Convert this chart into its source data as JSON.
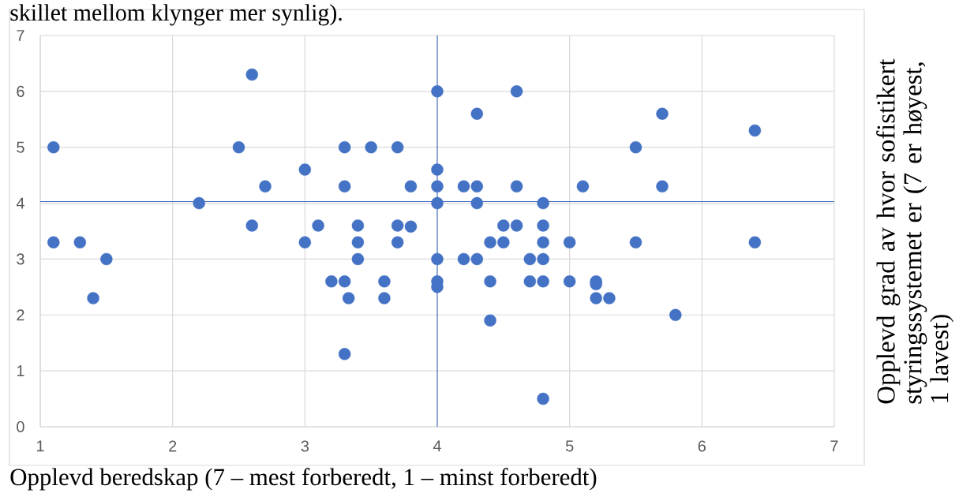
{
  "chart_data": {
    "type": "scatter",
    "annotations": [
      "skillet mellom klynger mer synlig)."
    ],
    "xlabel": "Opplevd beredskap (7 – mest forberedt, 1 – minst forberedt)",
    "ylabel": "Opplevd grad av hvor sofistikert styringssystemet er (7 er høyest, 1 lavest)",
    "color": "#4472c4",
    "grid": true,
    "xlim": [
      1,
      7
    ],
    "ylim": [
      0,
      7
    ],
    "xticks": [
      1,
      2,
      3,
      4,
      5,
      6,
      7
    ],
    "yticks": [
      0,
      1,
      2,
      3,
      4,
      5,
      6,
      7
    ],
    "x": [
      1.1,
      1.1,
      1.3,
      1.4,
      1.5,
      2.2,
      2.5,
      2.6,
      2.6,
      2.7,
      3,
      3,
      3.1,
      3.2,
      3.3,
      3.3,
      3.3,
      3.3,
      3.33,
      3.4,
      3.4,
      3.4,
      3.5,
      3.6,
      3.6,
      3.7,
      3.7,
      3.7,
      3.8,
      3.8,
      4,
      4,
      4,
      4,
      4,
      4,
      4,
      4.2,
      4.2,
      4.3,
      4.3,
      4.3,
      4.3,
      4.4,
      4.4,
      4.4,
      4.5,
      4.5,
      4.6,
      4.6,
      4.6,
      4.7,
      4.7,
      4.8,
      4.8,
      4.8,
      4.8,
      4.8,
      4.8,
      5,
      5,
      5.1,
      5.2,
      5.2,
      5.2,
      5.3,
      5.5,
      5.5,
      5.7,
      5.7,
      5.8,
      6.4,
      6.4
    ],
    "values": [
      5,
      3.3,
      3.3,
      2.3,
      3,
      4,
      5,
      6.3,
      3.6,
      4.3,
      4.6,
      3.3,
      3.6,
      2.6,
      5,
      4.3,
      2.6,
      1.3,
      2.3,
      3.6,
      3.3,
      3,
      5,
      2.6,
      2.3,
      5,
      3.6,
      3.3,
      4.3,
      3.58,
      6,
      4.6,
      4.3,
      4,
      3,
      2.6,
      2.5,
      4.3,
      3,
      5.6,
      4.3,
      4,
      3,
      3.3,
      2.6,
      1.9,
      3.6,
      3.3,
      6,
      4.3,
      3.6,
      3,
      2.6,
      4,
      3.6,
      3.3,
      3,
      2.6,
      0.5,
      3.3,
      2.6,
      4.3,
      2.6,
      2.55,
      2.3,
      2.3,
      5,
      3.3,
      5.6,
      4.3,
      2,
      5.3,
      3.3
    ],
    "ref_lines": [
      {
        "axis": "x",
        "value": 4,
        "color": "#4472c4"
      },
      {
        "axis": "y",
        "value": 4.03,
        "color": "#4472c4"
      }
    ]
  }
}
